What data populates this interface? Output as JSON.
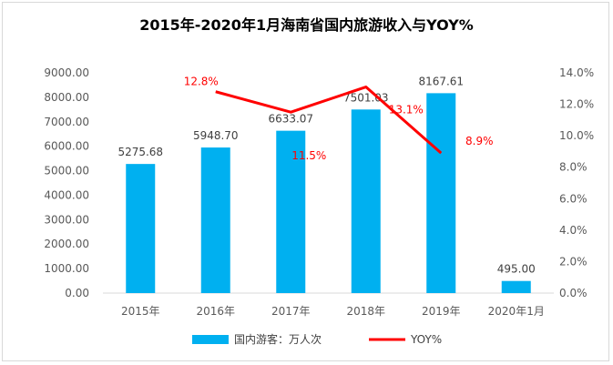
{
  "chart_data": {
    "type": "bar+line",
    "title": "2015年-2020年1月海南省国内旅游收入与YOY%",
    "categories": [
      "2015年",
      "2016年",
      "2017年",
      "2018年",
      "2019年",
      "2020年1月"
    ],
    "series": [
      {
        "name": "国内游客：万人次",
        "type": "bar",
        "axis": "left",
        "color": "#00b0f0",
        "values": [
          5275.68,
          5948.7,
          6633.07,
          7501.03,
          8167.61,
          495.0
        ],
        "labels": [
          "5275.68",
          "5948.70",
          "6633.07",
          "7501.03",
          "8167.61",
          "495.00"
        ]
      },
      {
        "name": "YOY%",
        "type": "line",
        "axis": "right",
        "color": "#ff0000",
        "points": [
          {
            "category": "2016年",
            "value": 12.8,
            "label": "12.8%"
          },
          {
            "category": "2017年",
            "value": 11.5,
            "label": "11.5%"
          },
          {
            "category": "2018年",
            "value": 13.1,
            "label": "13.1%"
          },
          {
            "category": "2019年",
            "value": 8.9,
            "label": "8.9%"
          }
        ]
      }
    ],
    "y_left": {
      "ylim": [
        0,
        9000
      ],
      "ticks": [
        "0.00",
        "1000.00",
        "2000.00",
        "3000.00",
        "4000.00",
        "5000.00",
        "6000.00",
        "7000.00",
        "8000.00",
        "9000.00"
      ]
    },
    "y_right": {
      "ylim": [
        0,
        14
      ],
      "ticks": [
        "0.0%",
        "2.0%",
        "4.0%",
        "6.0%",
        "8.0%",
        "10.0%",
        "12.0%",
        "14.0%"
      ]
    },
    "grid": false,
    "legend": "bottom"
  }
}
